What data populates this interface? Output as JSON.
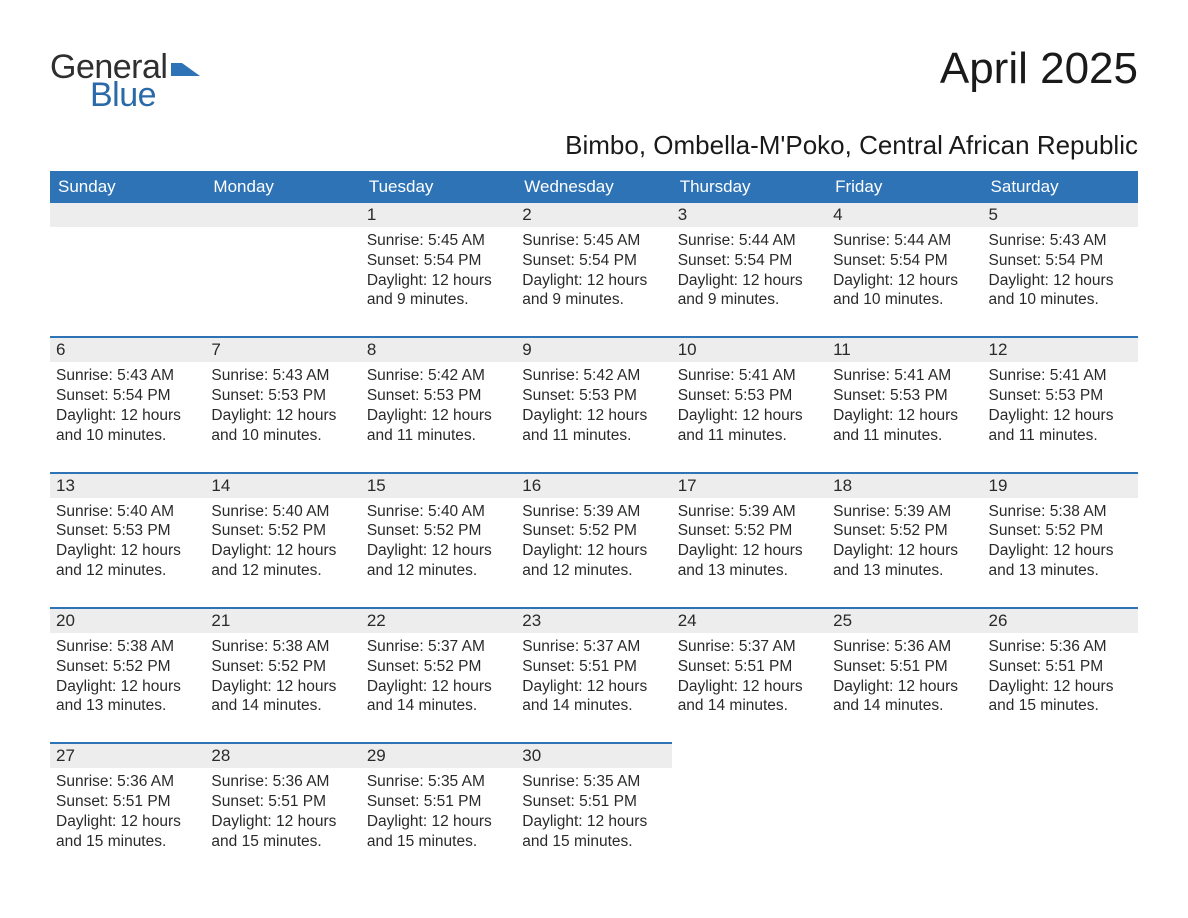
{
  "brand": {
    "line1": "General",
    "line2": "Blue",
    "icon_color": "#2d73b6"
  },
  "title": "April 2025",
  "location": "Bimbo, Ombella-M'Poko, Central African Republic",
  "colors": {
    "header_bg": "#2d73b6",
    "header_text": "#ffffff",
    "row_accent": "#2d73b6",
    "daynum_bg": "#ededed",
    "text": "#2a2a2a",
    "page_bg": "#ffffff"
  },
  "typography": {
    "title_fontsize": 44,
    "location_fontsize": 26,
    "header_fontsize": 17,
    "daynum_fontsize": 17,
    "detail_fontsize": 15.5
  },
  "day_headers": [
    "Sunday",
    "Monday",
    "Tuesday",
    "Wednesday",
    "Thursday",
    "Friday",
    "Saturday"
  ],
  "weeks": [
    [
      null,
      null,
      {
        "n": "1",
        "sr": "Sunrise: 5:45 AM",
        "ss": "Sunset: 5:54 PM",
        "dl": "Daylight: 12 hours and 9 minutes."
      },
      {
        "n": "2",
        "sr": "Sunrise: 5:45 AM",
        "ss": "Sunset: 5:54 PM",
        "dl": "Daylight: 12 hours and 9 minutes."
      },
      {
        "n": "3",
        "sr": "Sunrise: 5:44 AM",
        "ss": "Sunset: 5:54 PM",
        "dl": "Daylight: 12 hours and 9 minutes."
      },
      {
        "n": "4",
        "sr": "Sunrise: 5:44 AM",
        "ss": "Sunset: 5:54 PM",
        "dl": "Daylight: 12 hours and 10 minutes."
      },
      {
        "n": "5",
        "sr": "Sunrise: 5:43 AM",
        "ss": "Sunset: 5:54 PM",
        "dl": "Daylight: 12 hours and 10 minutes."
      }
    ],
    [
      {
        "n": "6",
        "sr": "Sunrise: 5:43 AM",
        "ss": "Sunset: 5:54 PM",
        "dl": "Daylight: 12 hours and 10 minutes."
      },
      {
        "n": "7",
        "sr": "Sunrise: 5:43 AM",
        "ss": "Sunset: 5:53 PM",
        "dl": "Daylight: 12 hours and 10 minutes."
      },
      {
        "n": "8",
        "sr": "Sunrise: 5:42 AM",
        "ss": "Sunset: 5:53 PM",
        "dl": "Daylight: 12 hours and 11 minutes."
      },
      {
        "n": "9",
        "sr": "Sunrise: 5:42 AM",
        "ss": "Sunset: 5:53 PM",
        "dl": "Daylight: 12 hours and 11 minutes."
      },
      {
        "n": "10",
        "sr": "Sunrise: 5:41 AM",
        "ss": "Sunset: 5:53 PM",
        "dl": "Daylight: 12 hours and 11 minutes."
      },
      {
        "n": "11",
        "sr": "Sunrise: 5:41 AM",
        "ss": "Sunset: 5:53 PM",
        "dl": "Daylight: 12 hours and 11 minutes."
      },
      {
        "n": "12",
        "sr": "Sunrise: 5:41 AM",
        "ss": "Sunset: 5:53 PM",
        "dl": "Daylight: 12 hours and 11 minutes."
      }
    ],
    [
      {
        "n": "13",
        "sr": "Sunrise: 5:40 AM",
        "ss": "Sunset: 5:53 PM",
        "dl": "Daylight: 12 hours and 12 minutes."
      },
      {
        "n": "14",
        "sr": "Sunrise: 5:40 AM",
        "ss": "Sunset: 5:52 PM",
        "dl": "Daylight: 12 hours and 12 minutes."
      },
      {
        "n": "15",
        "sr": "Sunrise: 5:40 AM",
        "ss": "Sunset: 5:52 PM",
        "dl": "Daylight: 12 hours and 12 minutes."
      },
      {
        "n": "16",
        "sr": "Sunrise: 5:39 AM",
        "ss": "Sunset: 5:52 PM",
        "dl": "Daylight: 12 hours and 12 minutes."
      },
      {
        "n": "17",
        "sr": "Sunrise: 5:39 AM",
        "ss": "Sunset: 5:52 PM",
        "dl": "Daylight: 12 hours and 13 minutes."
      },
      {
        "n": "18",
        "sr": "Sunrise: 5:39 AM",
        "ss": "Sunset: 5:52 PM",
        "dl": "Daylight: 12 hours and 13 minutes."
      },
      {
        "n": "19",
        "sr": "Sunrise: 5:38 AM",
        "ss": "Sunset: 5:52 PM",
        "dl": "Daylight: 12 hours and 13 minutes."
      }
    ],
    [
      {
        "n": "20",
        "sr": "Sunrise: 5:38 AM",
        "ss": "Sunset: 5:52 PM",
        "dl": "Daylight: 12 hours and 13 minutes."
      },
      {
        "n": "21",
        "sr": "Sunrise: 5:38 AM",
        "ss": "Sunset: 5:52 PM",
        "dl": "Daylight: 12 hours and 14 minutes."
      },
      {
        "n": "22",
        "sr": "Sunrise: 5:37 AM",
        "ss": "Sunset: 5:52 PM",
        "dl": "Daylight: 12 hours and 14 minutes."
      },
      {
        "n": "23",
        "sr": "Sunrise: 5:37 AM",
        "ss": "Sunset: 5:51 PM",
        "dl": "Daylight: 12 hours and 14 minutes."
      },
      {
        "n": "24",
        "sr": "Sunrise: 5:37 AM",
        "ss": "Sunset: 5:51 PM",
        "dl": "Daylight: 12 hours and 14 minutes."
      },
      {
        "n": "25",
        "sr": "Sunrise: 5:36 AM",
        "ss": "Sunset: 5:51 PM",
        "dl": "Daylight: 12 hours and 14 minutes."
      },
      {
        "n": "26",
        "sr": "Sunrise: 5:36 AM",
        "ss": "Sunset: 5:51 PM",
        "dl": "Daylight: 12 hours and 15 minutes."
      }
    ],
    [
      {
        "n": "27",
        "sr": "Sunrise: 5:36 AM",
        "ss": "Sunset: 5:51 PM",
        "dl": "Daylight: 12 hours and 15 minutes."
      },
      {
        "n": "28",
        "sr": "Sunrise: 5:36 AM",
        "ss": "Sunset: 5:51 PM",
        "dl": "Daylight: 12 hours and 15 minutes."
      },
      {
        "n": "29",
        "sr": "Sunrise: 5:35 AM",
        "ss": "Sunset: 5:51 PM",
        "dl": "Daylight: 12 hours and 15 minutes."
      },
      {
        "n": "30",
        "sr": "Sunrise: 5:35 AM",
        "ss": "Sunset: 5:51 PM",
        "dl": "Daylight: 12 hours and 15 minutes."
      },
      null,
      null,
      null
    ]
  ]
}
